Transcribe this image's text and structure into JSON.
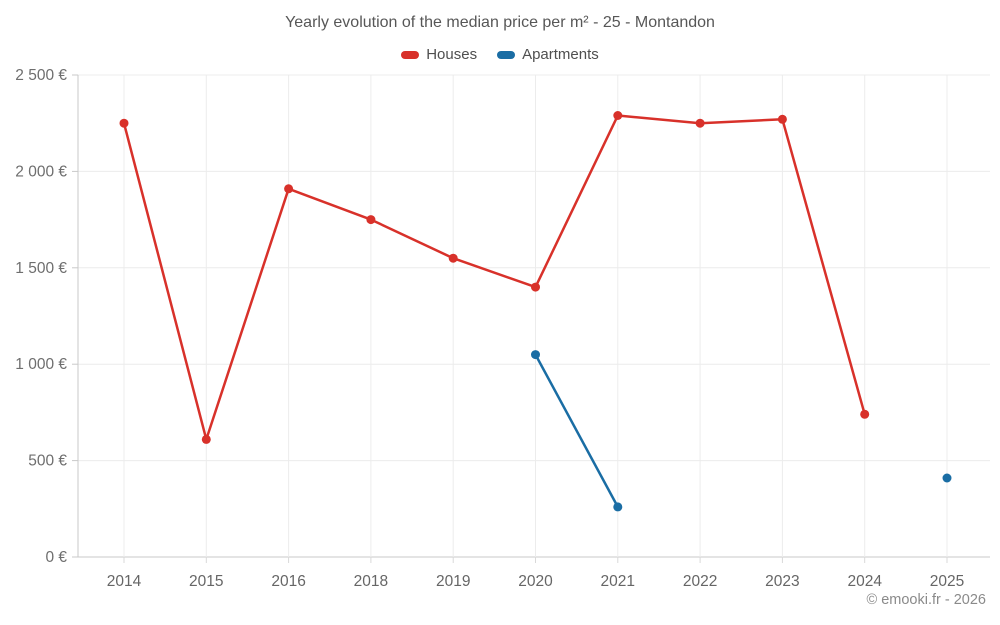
{
  "title": "Yearly evolution of the median price per m² - 25 - Montandon",
  "footer": "© emooki.fr - 2026",
  "legend": [
    {
      "label": "Houses",
      "color": "#d8312a"
    },
    {
      "label": "Apartments",
      "color": "#1a6da4"
    }
  ],
  "chart_data": {
    "type": "line",
    "title": "Yearly evolution of the median price per m² - 25 - Montandon",
    "categories": [
      "2014",
      "2015",
      "2016",
      "2018",
      "2019",
      "2020",
      "2021",
      "2022",
      "2023",
      "2024",
      "2025"
    ],
    "series": [
      {
        "name": "Houses",
        "color": "#d8312a",
        "values": [
          2250,
          610,
          1910,
          1750,
          1550,
          1400,
          2290,
          2250,
          2270,
          740,
          null
        ]
      },
      {
        "name": "Apartments",
        "color": "#1a6da4",
        "values": [
          null,
          null,
          null,
          null,
          null,
          1050,
          260,
          null,
          null,
          null,
          410
        ]
      }
    ],
    "xlabel": "",
    "ylabel": "",
    "ylim": [
      0,
      2500
    ],
    "yticks": [
      0,
      500,
      1000,
      1500,
      2000,
      2500
    ],
    "ytick_labels": [
      "0 €",
      "500 €",
      "1 000 €",
      "1 500 €",
      "2 000 €",
      "2 500 €"
    ],
    "grid": true,
    "legend_position": "top",
    "marker": "circle"
  }
}
